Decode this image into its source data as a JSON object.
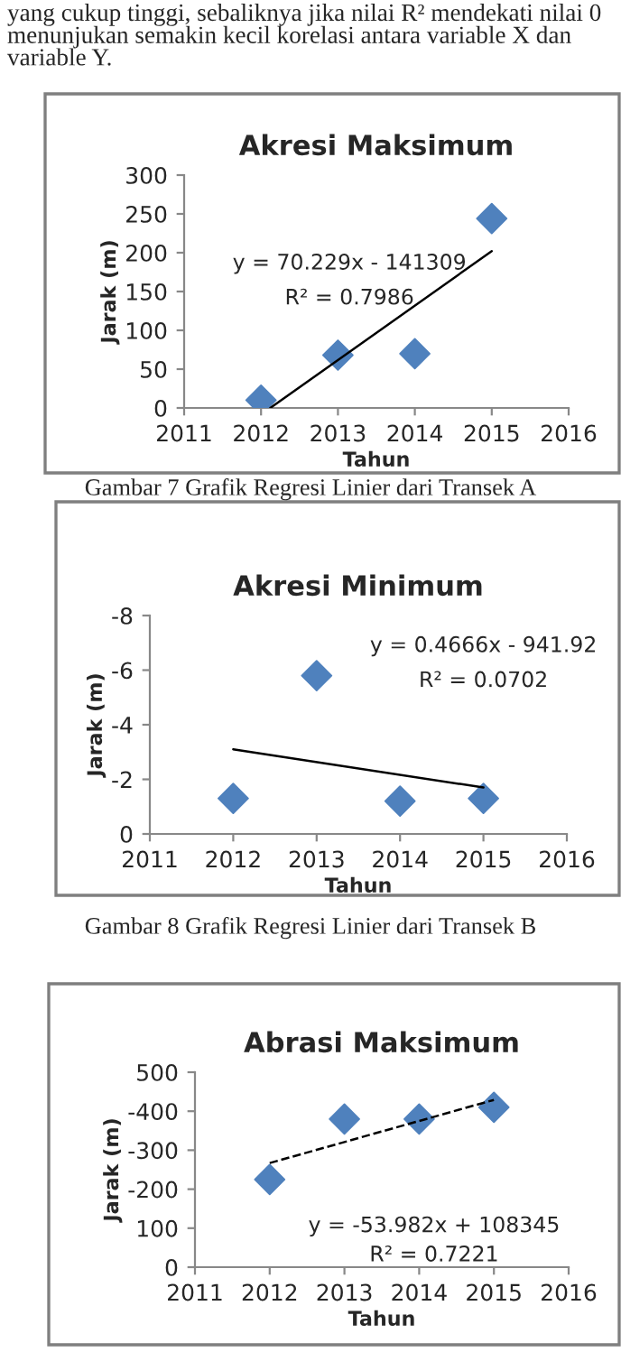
{
  "chart_data": [
    {
      "type": "scatter",
      "title": "Akresi Maksimum",
      "xlabel": "Tahun",
      "ylabel": "Jarak (m)",
      "annotations": [
        "yang cukup tinggi, sebaliknya jika nilai R² mendekati nilai 0 menunjukan semakin kecil korelasi antara variable X dan variable Y.",
        "y = 70.229x - 141309",
        "R² = 0.7986",
        "Gambar 7 Grafik Regresi Linier dari Transek A"
      ],
      "series": [
        {
          "color": "#4f81bd",
          "marker": "diamond",
          "x": [
            2012,
            2013,
            2014,
            2015
          ],
          "values": [
            10,
            68,
            70,
            244
          ]
        },
        {
          "type": "line",
          "color": "#000000",
          "line_style": "solid",
          "x": [
            2012.12,
            2015
          ],
          "values": [
            0,
            202
          ]
        }
      ],
      "xlim": [
        2011,
        2016
      ],
      "xticks": [
        2011,
        2012,
        2013,
        2014,
        2015,
        2016
      ],
      "ylim": [
        0,
        300
      ],
      "yticks": [
        0,
        50,
        100,
        150,
        200,
        250,
        300
      ],
      "grid": false,
      "legend": false
    },
    {
      "type": "scatter",
      "title": "Akresi Minimum",
      "xlabel": "Tahun",
      "ylabel": "Jarak (m)",
      "annotations": [
        "y = 0.4666x - 941.92",
        "R² = 0.0702",
        "Gambar 8 Grafik Regresi Linier dari Transek B"
      ],
      "series": [
        {
          "color": "#4f81bd",
          "marker": "diamond",
          "x": [
            2012,
            2013,
            2014,
            2015
          ],
          "values": [
            -1.3,
            -5.8,
            -1.2,
            -1.3
          ]
        },
        {
          "type": "line",
          "color": "#000000",
          "line_style": "solid",
          "x": [
            2012,
            2015
          ],
          "values": [
            -3.1,
            -1.7
          ]
        }
      ],
      "xlim": [
        2011,
        2016
      ],
      "xticks": [
        2011,
        2012,
        2013,
        2014,
        2015,
        2016
      ],
      "ylim": [
        0,
        -8
      ],
      "yticks": [
        0,
        -2,
        -4,
        -6,
        -8
      ],
      "grid": false,
      "legend": false
    },
    {
      "type": "scatter",
      "title": "Abrasi Maksimum",
      "xlabel": "Tahun",
      "ylabel": "Jarak (m)",
      "annotations": [
        "y = -53.982x + 108345",
        "R² = 0.7221"
      ],
      "series": [
        {
          "color": "#4f81bd",
          "marker": "diamond",
          "x": [
            2012,
            2013,
            2014,
            2015
          ],
          "values": [
            -225,
            -380,
            -380,
            -410
          ]
        },
        {
          "type": "line",
          "color": "#000000",
          "line_style": "dashed",
          "x": [
            2012,
            2015
          ],
          "values": [
            -267,
            -429
          ]
        }
      ],
      "xlim": [
        2011,
        2016
      ],
      "xticks": [
        2011,
        2012,
        2013,
        2014,
        2015,
        2016
      ],
      "ylim": [
        0,
        -500
      ],
      "yticks": [
        0,
        {
          "value": -100,
          "label": "100"
        },
        -200,
        -300,
        -400,
        {
          "value": -500,
          "label": "500"
        }
      ],
      "grid": false,
      "legend": false
    }
  ]
}
